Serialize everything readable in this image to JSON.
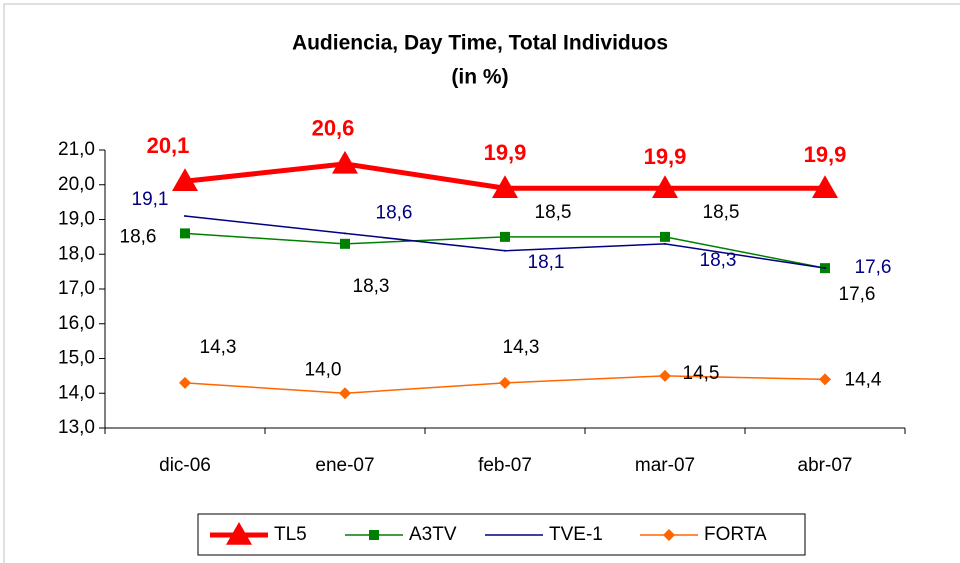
{
  "chart_data": {
    "type": "line",
    "title": "Audiencia, Day Time, Total Individuos",
    "subtitle": "(in %)",
    "categories": [
      "dic-06",
      "ene-07",
      "feb-07",
      "mar-07",
      "abr-07"
    ],
    "ylim": [
      13,
      21
    ],
    "yticks": [
      {
        "value": 13,
        "label": "13,0"
      },
      {
        "value": 14,
        "label": "14,0"
      },
      {
        "value": 15,
        "label": "15,0"
      },
      {
        "value": 16,
        "label": "16,0"
      },
      {
        "value": 17,
        "label": "17,0"
      },
      {
        "value": 18,
        "label": "18,0"
      },
      {
        "value": 19,
        "label": "19,0"
      },
      {
        "value": 20,
        "label": "20,0"
      },
      {
        "value": 21,
        "label": "21,0"
      }
    ],
    "legend": "bottom",
    "series": [
      {
        "name": "TL5",
        "color": "#ff0000",
        "marker": "triangle",
        "values": [
          20.1,
          20.6,
          19.9,
          19.9,
          19.9
        ],
        "value_labels": [
          "20,1",
          "20,6",
          "19,9",
          "19,9",
          "19,9"
        ]
      },
      {
        "name": "A3TV",
        "color": "#008000",
        "marker": "square",
        "values": [
          18.6,
          18.3,
          18.5,
          18.5,
          17.6
        ],
        "value_labels": [
          "18,6",
          "18,3",
          "18,5",
          "18,5",
          "17,6"
        ]
      },
      {
        "name": "TVE-1",
        "color": "#000080",
        "marker": "none",
        "values": [
          19.1,
          18.6,
          18.1,
          18.3,
          17.6
        ],
        "value_labels": [
          "19,1",
          "18,6",
          "18,1",
          "18,3",
          "17,6"
        ]
      },
      {
        "name": "FORTA",
        "color": "#ff6600",
        "marker": "diamond",
        "values": [
          14.3,
          14.0,
          14.3,
          14.5,
          14.4
        ],
        "value_labels": [
          "14,3",
          "14,0",
          "14,3",
          "14,5",
          "14,4"
        ]
      }
    ]
  }
}
